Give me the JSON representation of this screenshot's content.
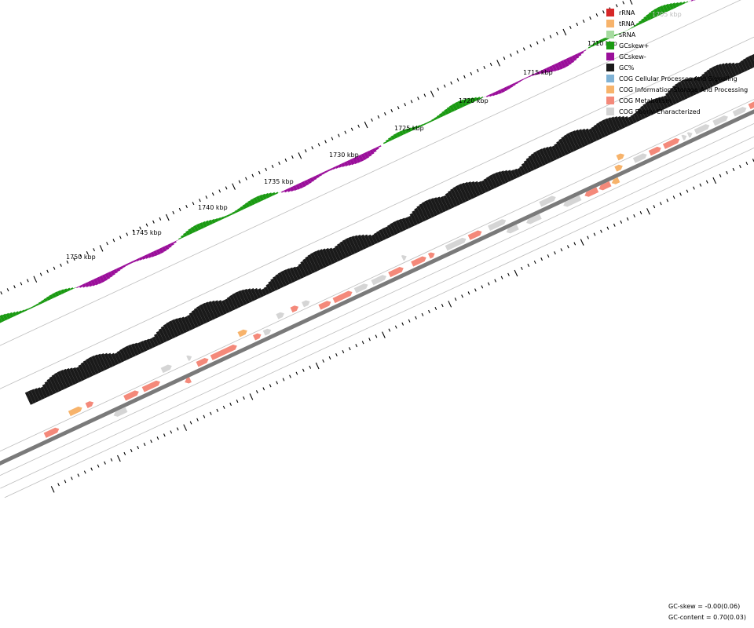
{
  "map": {
    "kbp_labels": [
      "1705 kbp",
      "1710 kbp",
      "1715 kbp",
      "1720 kbp",
      "1725 kbp",
      "1730 kbp",
      "1735 kbp",
      "1740 kbp",
      "1745 kbp",
      "1750 kbp"
    ]
  },
  "legend": [
    {
      "label": "rRNA",
      "color": "#d62728"
    },
    {
      "label": "tRNA",
      "color": "#f7b36b"
    },
    {
      "label": "sRNA",
      "color": "#a6dba0"
    },
    {
      "label": "GCskew+",
      "color": "#1a9a12"
    },
    {
      "label": "GCskew-",
      "color": "#9a0e9a"
    },
    {
      "label": "GC%",
      "color": "#1a1a1a"
    },
    {
      "label": "COG Cellular Processes And Signaling",
      "color": "#7fb2d5"
    },
    {
      "label": "COG Information Storage And Processing",
      "color": "#f7b36b"
    },
    {
      "label": "COG Metabolism",
      "color": "#f4897a"
    },
    {
      "label": "COG Poorly Characterized",
      "color": "#d3d3d3"
    }
  ],
  "stats": {
    "gc_skew": "GC-skew = -0.00(0.06)",
    "gc_content": "GC-content = 0.70(0.03)"
  }
}
